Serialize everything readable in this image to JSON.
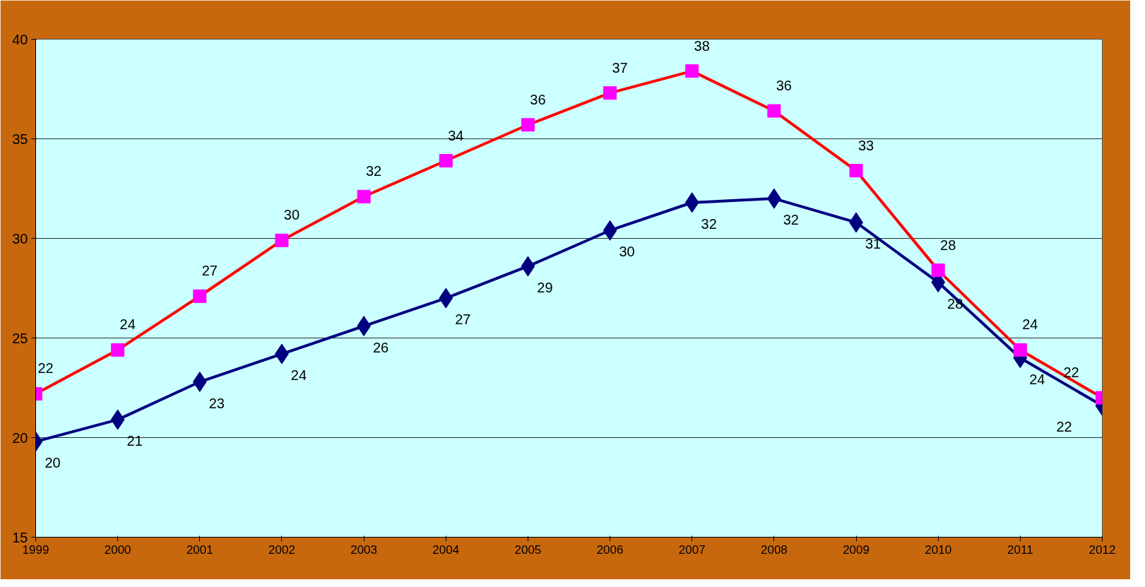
{
  "chart_data": {
    "type": "line",
    "x": [
      1999,
      2000,
      2001,
      2002,
      2003,
      2004,
      2005,
      2006,
      2007,
      2008,
      2009,
      2010,
      2011,
      2012
    ],
    "xlim": [
      1999,
      2012
    ],
    "xticks": [
      1999,
      2000,
      2001,
      2002,
      2003,
      2004,
      2005,
      2006,
      2007,
      2008,
      2009,
      2010,
      2011,
      2012
    ],
    "ylim": [
      15,
      40
    ],
    "yticks": [
      15,
      20,
      25,
      30,
      35,
      40
    ],
    "grid": "y",
    "line_style": "solid",
    "series": [
      {
        "color": "#ff0000",
        "colors": [
          "#ff00ff",
          "#ff00ff",
          "#ff00ff",
          "#ff00ff",
          "#ff00ff",
          "#ff00ff",
          "#ff00ff",
          "#ff00ff",
          "#ff00ff",
          "#ff00ff",
          "#ff00ff",
          "#ff00ff",
          "#ff00ff",
          "#ff00ff"
        ],
        "marker": "square",
        "values": [
          22.2,
          24.4,
          27.1,
          29.9,
          32.1,
          33.9,
          35.7,
          37.3,
          38.4,
          36.4,
          33.4,
          28.4,
          24.4,
          22.0
        ],
        "value_labels": [
          "22",
          "24",
          "27",
          "30",
          "32",
          "34",
          "36",
          "37",
          "38",
          "36",
          "33",
          "28",
          "24",
          "22"
        ]
      },
      {
        "color": "#000080",
        "marker": "diamond",
        "values": [
          19.8,
          20.9,
          22.8,
          24.2,
          25.6,
          27.0,
          28.6,
          30.4,
          31.8,
          32.0,
          30.8,
          27.8,
          24.0,
          21.6
        ],
        "value_labels": [
          "20",
          "21",
          "23",
          "24",
          "26",
          "27",
          "29",
          "30",
          "32",
          "32",
          "31",
          "28",
          "24",
          "22"
        ]
      }
    ]
  }
}
